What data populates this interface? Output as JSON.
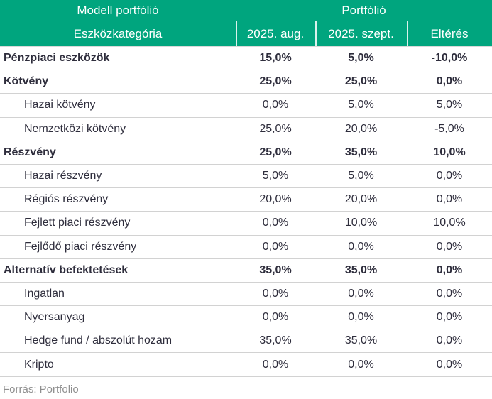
{
  "colors": {
    "header_bg": "#00a57e",
    "header_text": "#ffffff",
    "body_text": "#2e2d3c",
    "divider": "#d2d2d2",
    "source_text": "#8f8f8f"
  },
  "chart_data": {
    "type": "table",
    "header_groups": [
      "Modell portfólió",
      "Portfólió"
    ],
    "columns": [
      "Eszközkategória",
      "2025. aug.",
      "2025. szept.",
      "Eltérés"
    ],
    "rows": [
      {
        "label": "Pénzpiaci eszközök",
        "values": [
          "15,0%",
          "5,0%",
          "-10,0%"
        ],
        "bold": true,
        "indent": false
      },
      {
        "label": "Kötvény",
        "values": [
          "25,0%",
          "25,0%",
          "0,0%"
        ],
        "bold": true,
        "indent": false
      },
      {
        "label": "Hazai kötvény",
        "values": [
          "0,0%",
          "5,0%",
          "5,0%"
        ],
        "bold": false,
        "indent": true
      },
      {
        "label": "Nemzetközi kötvény",
        "values": [
          "25,0%",
          "20,0%",
          "-5,0%"
        ],
        "bold": false,
        "indent": true
      },
      {
        "label": "Részvény",
        "values": [
          "25,0%",
          "35,0%",
          "10,0%"
        ],
        "bold": true,
        "indent": false
      },
      {
        "label": "Hazai részvény",
        "values": [
          "5,0%",
          "5,0%",
          "0,0%"
        ],
        "bold": false,
        "indent": true
      },
      {
        "label": "Régiós részvény",
        "values": [
          "20,0%",
          "20,0%",
          "0,0%"
        ],
        "bold": false,
        "indent": true
      },
      {
        "label": "Fejlett piaci részvény",
        "values": [
          "0,0%",
          "10,0%",
          "10,0%"
        ],
        "bold": false,
        "indent": true
      },
      {
        "label": "Fejlődő piaci részvény",
        "values": [
          "0,0%",
          "0,0%",
          "0,0%"
        ],
        "bold": false,
        "indent": true
      },
      {
        "label": "Alternatív befektetések",
        "values": [
          "35,0%",
          "35,0%",
          "0,0%"
        ],
        "bold": true,
        "indent": false
      },
      {
        "label": "Ingatlan",
        "values": [
          "0,0%",
          "0,0%",
          "0,0%"
        ],
        "bold": false,
        "indent": true
      },
      {
        "label": "Nyersanyag",
        "values": [
          "0,0%",
          "0,0%",
          "0,0%"
        ],
        "bold": false,
        "indent": true
      },
      {
        "label": "Hedge fund / abszolút hozam",
        "values": [
          "35,0%",
          "35,0%",
          "0,0%"
        ],
        "bold": false,
        "indent": true
      },
      {
        "label": "Kripto",
        "values": [
          "0,0%",
          "0,0%",
          "0,0%"
        ],
        "bold": false,
        "indent": true
      }
    ],
    "source": "Forrás: Portfolio"
  }
}
